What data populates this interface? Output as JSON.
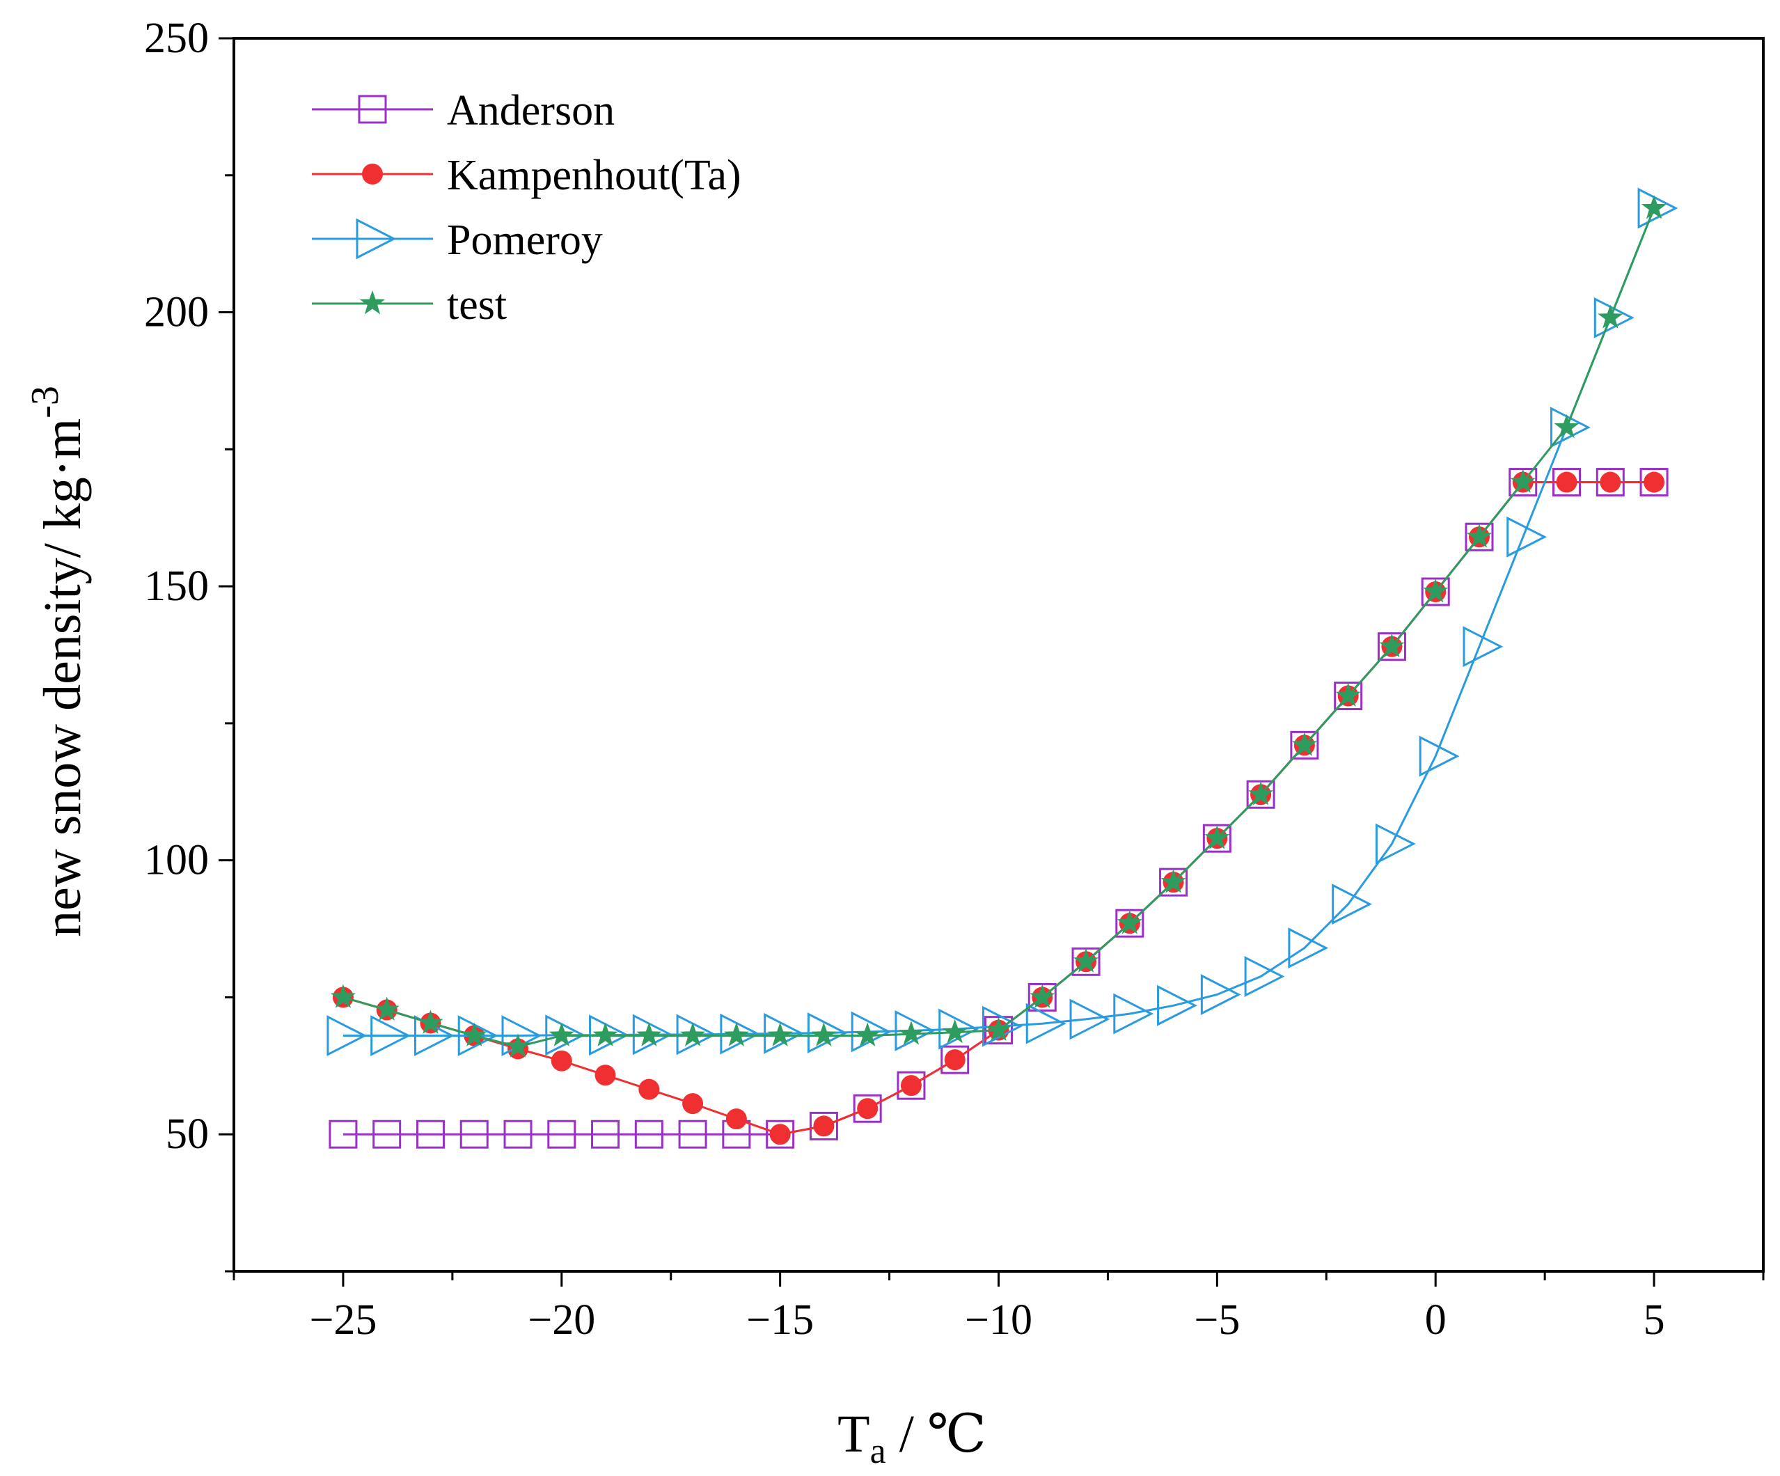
{
  "chart_data": {
    "type": "line",
    "title": "",
    "xlabel_main": "T",
    "xlabel_sub": "a",
    "xlabel_unit": " / ℃",
    "ylabel_main": "new snow density/ kg·m",
    "ylabel_sup": "-3",
    "xlim": [
      -27.5,
      7.5
    ],
    "ylim": [
      25,
      250
    ],
    "xticks": [
      -25,
      -20,
      -15,
      -10,
      -5,
      0,
      5
    ],
    "xtick_labels": [
      "−25",
      "−20",
      "−15",
      "−10",
      "−5",
      "0",
      "5"
    ],
    "yticks": [
      50,
      100,
      150,
      200,
      250
    ],
    "ytick_labels": [
      "50",
      "100",
      "150",
      "200",
      "250"
    ],
    "x": [
      -25,
      -24,
      -23,
      -22,
      -21,
      -20,
      -19,
      -18,
      -17,
      -16,
      -15,
      -14,
      -13,
      -12,
      -11,
      -10,
      -9,
      -8,
      -7,
      -6,
      -5,
      -4,
      -3,
      -2,
      -1,
      0,
      1,
      2,
      3,
      4,
      5
    ],
    "legend_position": "top-left",
    "grid": false,
    "series": [
      {
        "name": "Anderson",
        "color": "#9b30c8",
        "marker": "square-open",
        "values": [
          50,
          50,
          50,
          50,
          50,
          50,
          50,
          50,
          50,
          50,
          50,
          51.5,
          54.7,
          58.9,
          63.6,
          69,
          75,
          81.5,
          88.5,
          96,
          104,
          112,
          121,
          130,
          139,
          149,
          159,
          169,
          169,
          169,
          169
        ]
      },
      {
        "name": "Kampenhout(Ta)",
        "color": "#f03030",
        "marker": "circle-filled",
        "values": [
          75,
          72.7,
          70.3,
          68,
          65.6,
          63.4,
          60.8,
          58.2,
          55.6,
          52.8,
          50,
          51.5,
          54.7,
          58.9,
          63.6,
          69,
          75,
          81.5,
          88.5,
          96,
          104,
          112,
          121,
          130,
          139,
          149,
          159,
          169,
          169,
          169,
          169
        ]
      },
      {
        "name": "Pomeroy",
        "color": "#2a9be0",
        "marker": "triangle-right-open",
        "values": [
          68,
          68,
          68,
          68,
          68,
          68.1,
          68.1,
          68.2,
          68.2,
          68.3,
          68.4,
          68.5,
          68.7,
          68.9,
          69.2,
          69.7,
          70.2,
          71,
          72,
          73.5,
          75.5,
          78.8,
          84,
          92,
          103,
          119,
          139,
          159,
          179,
          199,
          219
        ]
      },
      {
        "name": "test",
        "color": "#2e9c5e",
        "marker": "star-filled",
        "values": [
          75,
          72.7,
          70.3,
          68,
          66,
          68,
          68,
          68,
          68,
          68,
          68,
          68,
          68,
          68.3,
          68.6,
          69,
          75,
          81.5,
          88.5,
          96,
          104,
          112,
          121,
          130,
          139,
          149,
          159,
          169,
          179,
          199,
          219
        ]
      }
    ]
  }
}
